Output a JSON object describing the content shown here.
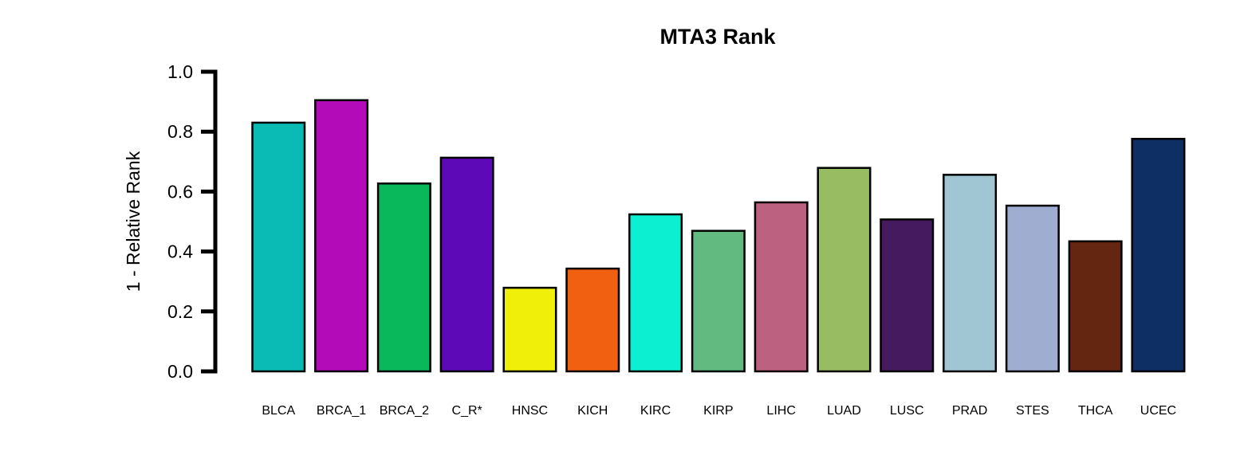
{
  "chart_data": {
    "type": "bar",
    "title": "MTA3 Rank",
    "xlabel": "",
    "ylabel": "1 - Relative Rank",
    "ylim": [
      0,
      1
    ],
    "yticks": [
      "0.0",
      "0.2",
      "0.4",
      "0.6",
      "0.8",
      "1.0"
    ],
    "grid": false,
    "categories": [
      "BLCA",
      "BRCA_1",
      "BRCA_2",
      "C_R*",
      "HNSC",
      "KICH",
      "KIRC",
      "KIRP",
      "LIHC",
      "LUAD",
      "LUSC",
      "PRAD",
      "STES",
      "THCA",
      "UCEC"
    ],
    "values": [
      0.83,
      0.905,
      0.627,
      0.713,
      0.279,
      0.343,
      0.524,
      0.469,
      0.564,
      0.679,
      0.507,
      0.656,
      0.553,
      0.434,
      0.776
    ],
    "colors": [
      "#0ABAB5",
      "#B40BB8",
      "#09B85A",
      "#5D09B8",
      "#EFEF09",
      "#F15F10",
      "#0DEFD1",
      "#62BA81",
      "#BD6180",
      "#97BC62",
      "#461A5F",
      "#A0C6D4",
      "#9FADD1",
      "#652611",
      "#0E2F64"
    ]
  }
}
